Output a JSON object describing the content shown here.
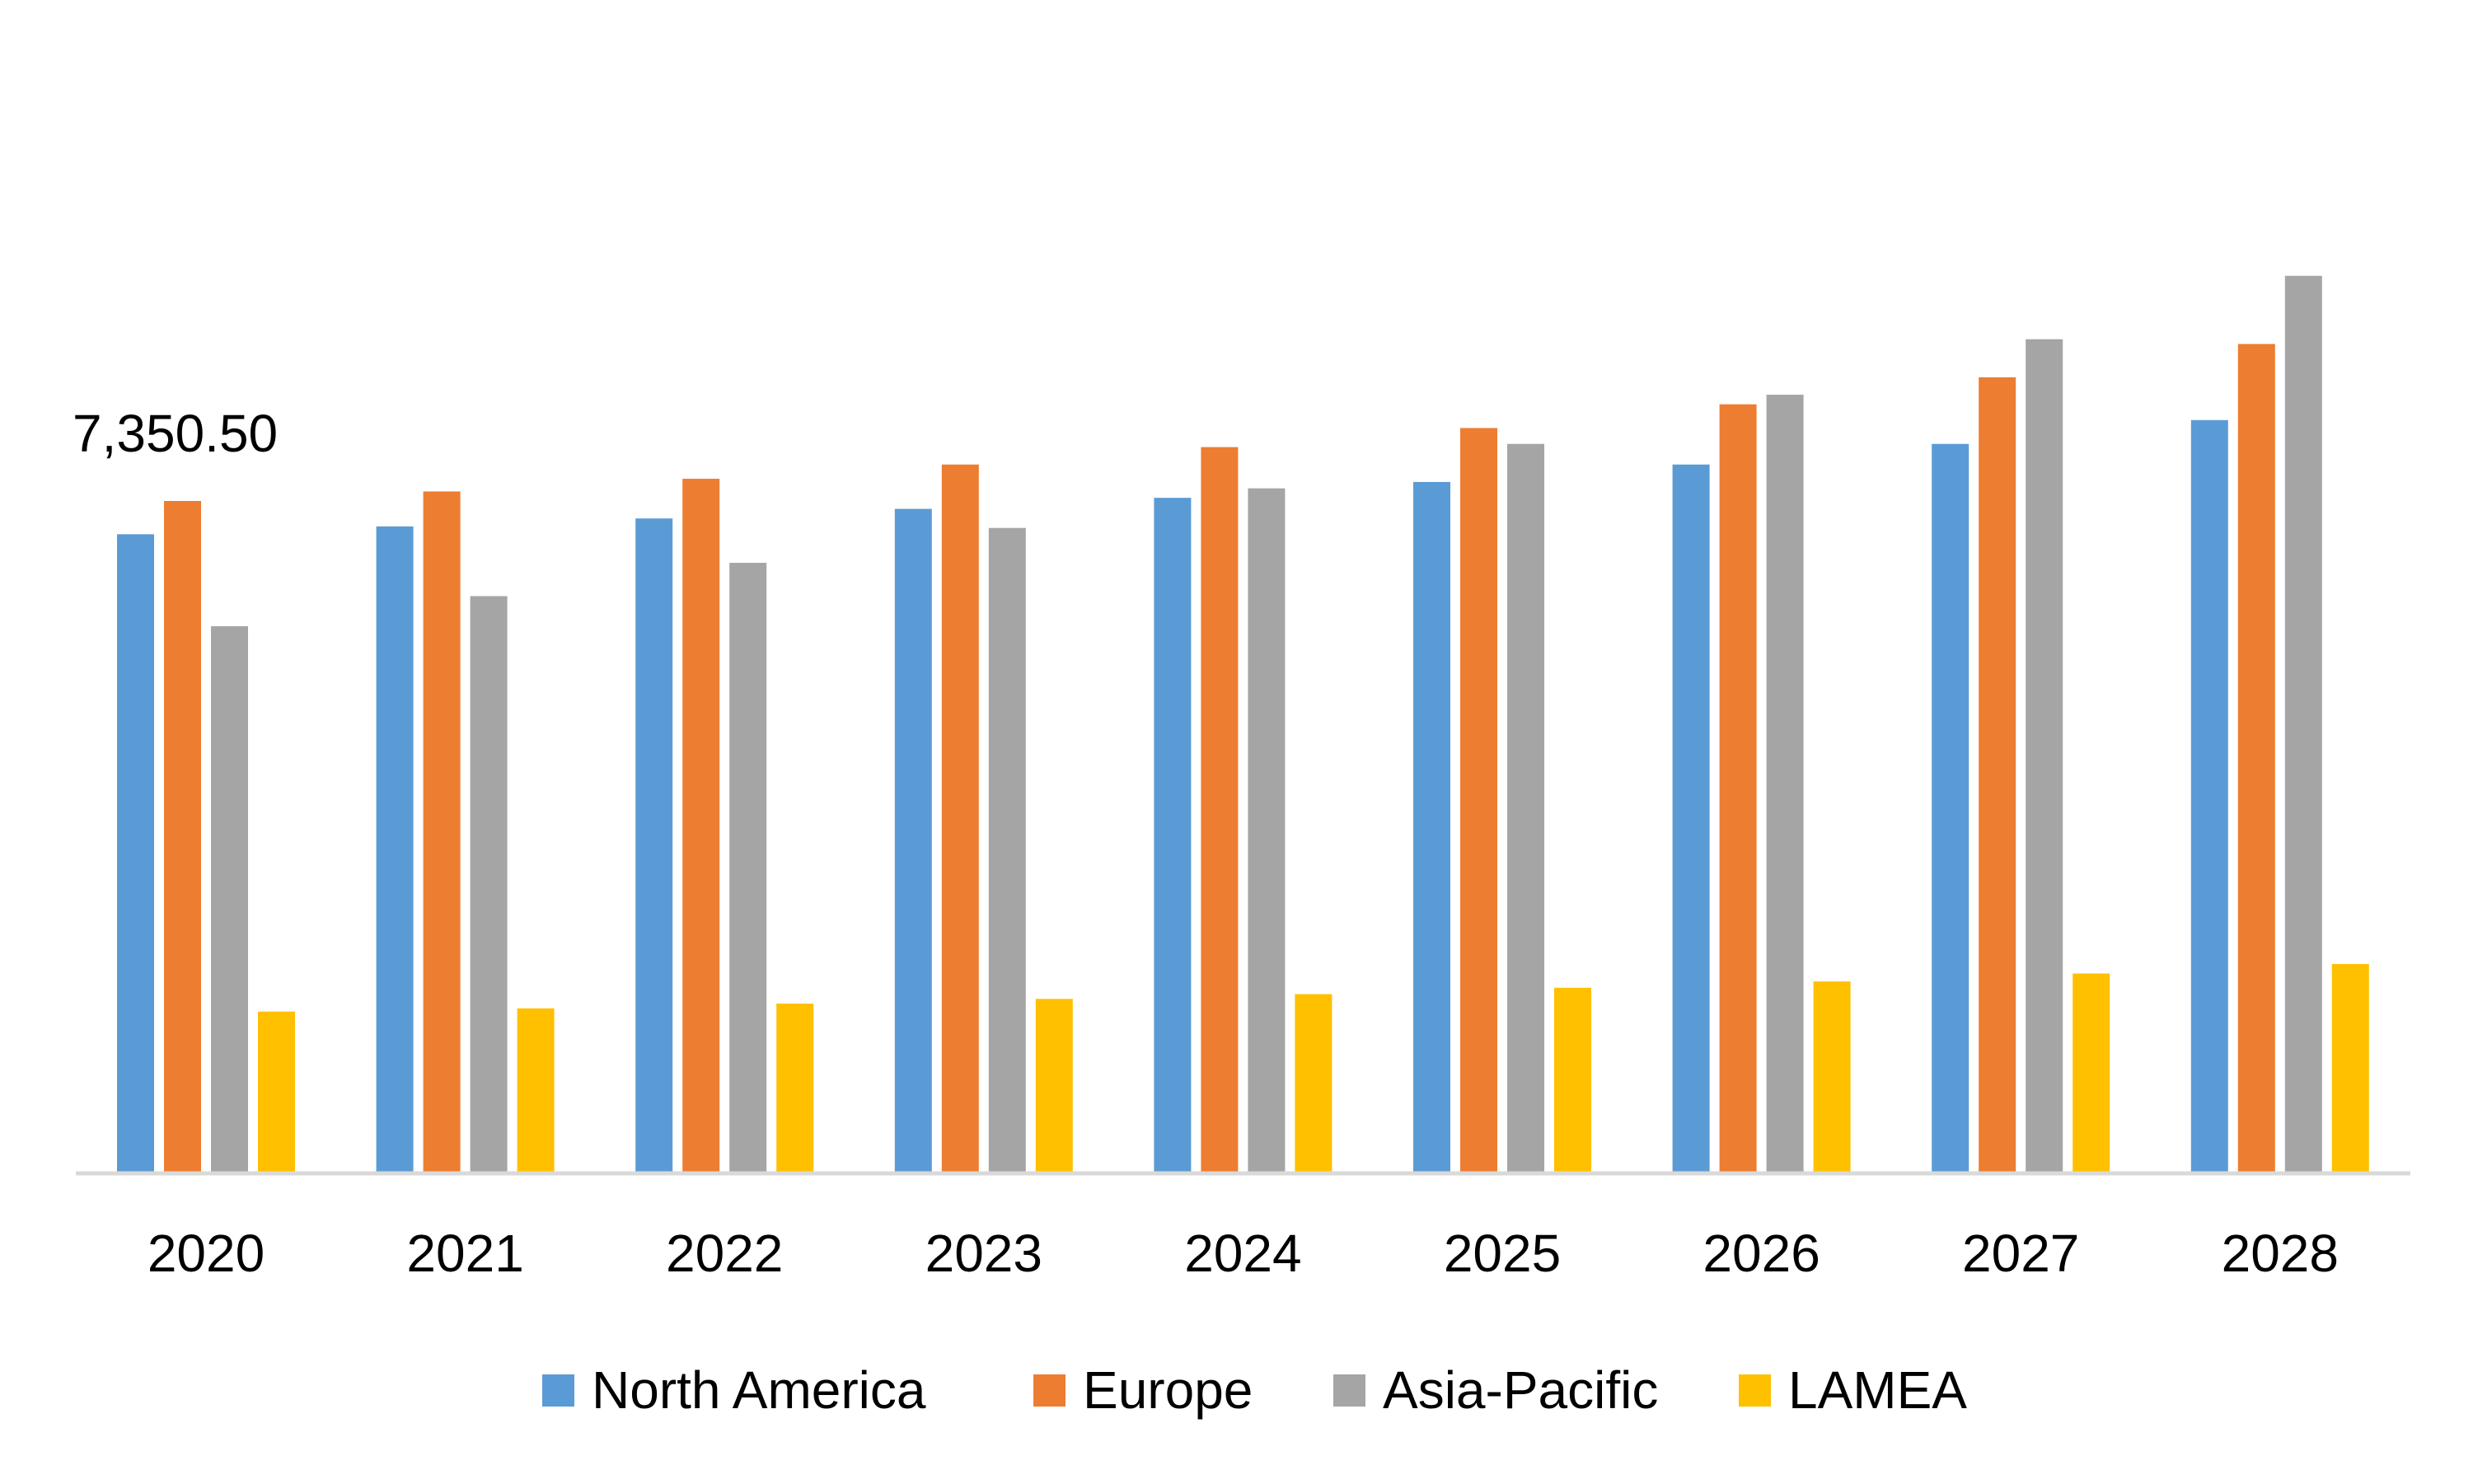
{
  "chart_data": {
    "type": "bar",
    "title": "",
    "xlabel": "",
    "ylabel": "",
    "categories": [
      "2020",
      "2021",
      "2022",
      "2023",
      "2024",
      "2025",
      "2026",
      "2027",
      "2028"
    ],
    "series": [
      {
        "name": "North America",
        "color": "#5b9bd5",
        "values": [
          6986,
          7072,
          7159,
          7264,
          7385,
          7559,
          7750,
          7976,
          8237
        ]
      },
      {
        "name": "Europe",
        "color": "#ed7d31",
        "values": [
          7350.5,
          7455,
          7594,
          7750,
          7941,
          8150,
          8410,
          8706,
          9071
        ]
      },
      {
        "name": "Asia-Pacific",
        "color": "#a5a5a5",
        "values": [
          5978,
          6308,
          6673,
          7055,
          7489,
          7976,
          8515,
          9123,
          9818
        ]
      },
      {
        "name": "LAMEA",
        "color": "#ffc000",
        "values": [
          1755,
          1790,
          1842,
          1894,
          1946,
          2016,
          2085,
          2172,
          2276
        ]
      }
    ],
    "data_labels": [
      {
        "series": "Europe",
        "category": "2020",
        "text": "7,350.50"
      }
    ],
    "ylim": [
      0,
      9818
    ],
    "grid": false,
    "y_axis_visible": false,
    "legend": "bottom"
  }
}
